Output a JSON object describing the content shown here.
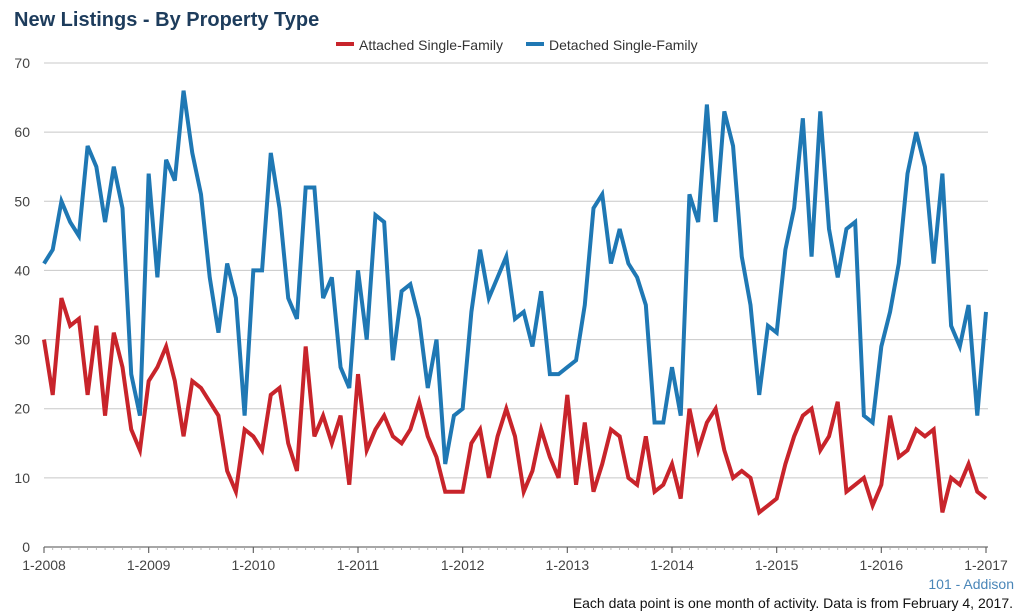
{
  "chart_data": {
    "type": "line",
    "title": "New Listings - By Property Type",
    "xlabel": "",
    "ylabel": "",
    "ylim": [
      0,
      70
    ],
    "yticks": [
      0,
      10,
      20,
      30,
      40,
      50,
      60,
      70
    ],
    "x_start": "1-2008",
    "x_end": "1-2017",
    "xticks": [
      "1-2008",
      "1-2009",
      "1-2010",
      "1-2011",
      "1-2012",
      "1-2013",
      "1-2014",
      "1-2015",
      "1-2016",
      "1-2017"
    ],
    "grid": true,
    "legend_position": "top-center",
    "series": [
      {
        "name": "Attached Single-Family",
        "color": "#c8242b",
        "values": [
          30,
          22,
          36,
          32,
          33,
          22,
          32,
          19,
          31,
          26,
          17,
          14,
          24,
          26,
          29,
          24,
          16,
          24,
          23,
          21,
          19,
          11,
          8,
          17,
          16,
          14,
          22,
          23,
          15,
          11,
          29,
          16,
          19,
          15,
          19,
          9,
          25,
          14,
          17,
          19,
          16,
          15,
          17,
          21,
          16,
          13,
          8,
          8,
          8,
          15,
          17,
          10,
          16,
          20,
          16,
          8,
          11,
          17,
          13,
          10,
          22,
          9,
          18,
          8,
          12,
          17,
          16,
          10,
          9,
          16,
          8,
          9,
          12,
          7,
          20,
          14,
          18,
          20,
          14,
          10,
          11,
          10,
          5,
          6,
          7,
          12,
          16,
          19,
          20,
          14,
          16,
          21,
          8,
          9,
          10,
          6,
          9,
          19,
          13,
          14,
          17,
          16,
          17,
          5,
          10,
          9,
          12,
          8,
          7
        ]
      },
      {
        "name": "Detached Single-Family",
        "color": "#1f78b4",
        "values": [
          41,
          43,
          50,
          47,
          45,
          58,
          55,
          47,
          55,
          49,
          25,
          19,
          54,
          39,
          56,
          53,
          66,
          57,
          51,
          39,
          31,
          41,
          36,
          19,
          40,
          40,
          57,
          49,
          36,
          33,
          52,
          52,
          36,
          39,
          26,
          23,
          40,
          30,
          48,
          47,
          27,
          37,
          38,
          33,
          23,
          30,
          12,
          19,
          20,
          34,
          43,
          36,
          39,
          42,
          33,
          34,
          29,
          37,
          25,
          25,
          26,
          27,
          35,
          49,
          51,
          41,
          46,
          41,
          39,
          35,
          18,
          18,
          26,
          19,
          51,
          47,
          64,
          47,
          63,
          58,
          42,
          35,
          22,
          32,
          31,
          43,
          49,
          62,
          42,
          63,
          46,
          39,
          46,
          47,
          19,
          18,
          29,
          34,
          41,
          54,
          60,
          55,
          41,
          54,
          32,
          29,
          35,
          19,
          34
        ]
      }
    ]
  },
  "footer": {
    "region": "101 - Addison",
    "note": "Each data point is one month of activity. Data is from February 4, 2017."
  }
}
